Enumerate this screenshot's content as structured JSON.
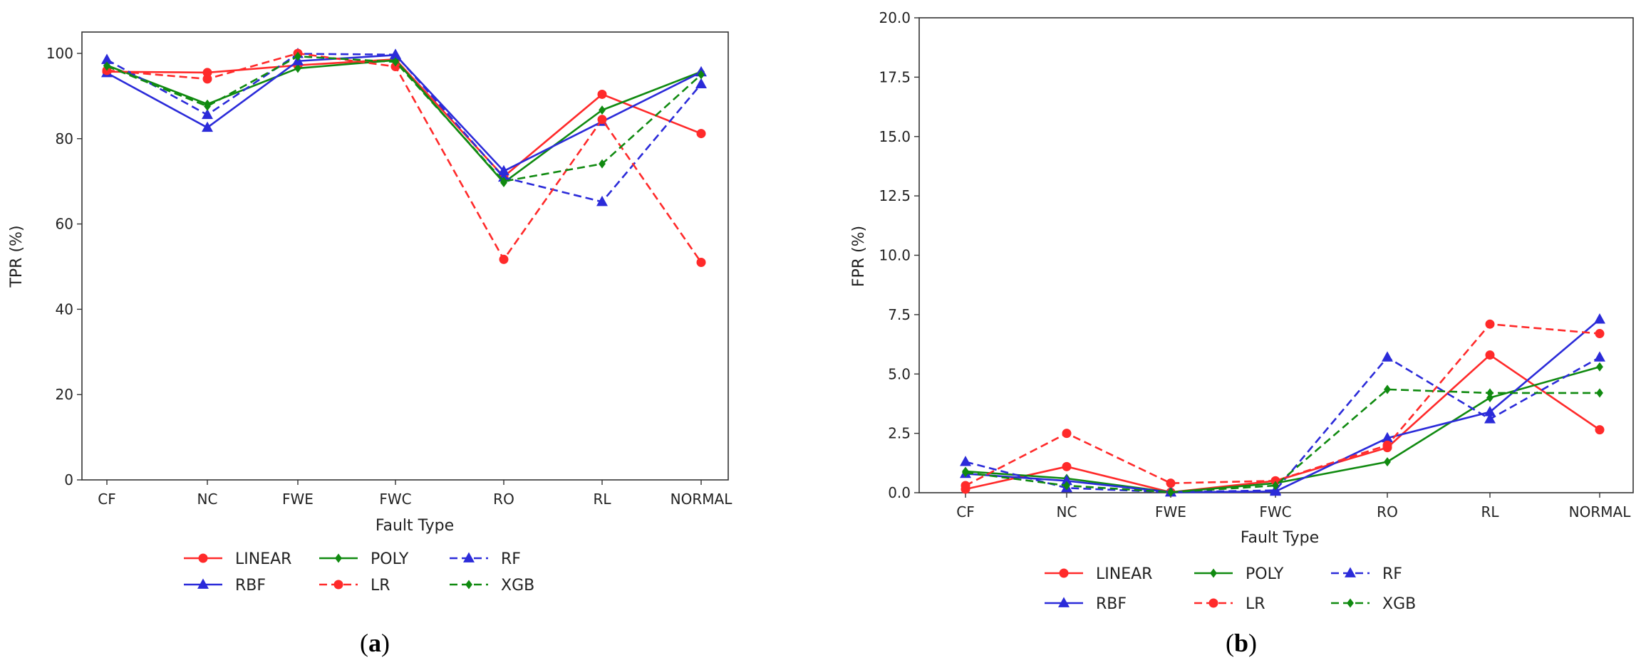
{
  "chart_data": [
    {
      "type": "line",
      "panel": "a",
      "caption": "(a)",
      "xlabel": "Fault Type",
      "ylabel": "TPR (%)",
      "categories": [
        "CF",
        "NC",
        "FWE",
        "FWC",
        "RO",
        "RL",
        "NORMAL"
      ],
      "ylim": [
        0,
        105
      ],
      "yticks": [
        0,
        20,
        40,
        60,
        80,
        100
      ],
      "ytick_labels": [
        "0",
        "20",
        "40",
        "60",
        "80",
        "100"
      ],
      "grid": false,
      "legend_position": "bottom-center",
      "series": [
        {
          "name": "LINEAR",
          "color": "#ff2a2a",
          "style": "solid",
          "marker": "circle",
          "values": [
            95.7,
            95.5,
            97.2,
            98.6,
            71.1,
            90.4,
            81.2
          ]
        },
        {
          "name": "POLY",
          "color": "#108a10",
          "style": "solid",
          "marker": "diamond",
          "values": [
            97.2,
            88.1,
            96.5,
            98.4,
            69.7,
            86.7,
            95.7
          ]
        },
        {
          "name": "RF",
          "color": "#2b2bd9",
          "style": "dashed",
          "marker": "triangle",
          "values": [
            98.5,
            85.6,
            99.9,
            99.7,
            70.9,
            65.2,
            92.8
          ]
        },
        {
          "name": "RBF",
          "color": "#2b2bd9",
          "style": "solid",
          "marker": "triangle",
          "values": [
            95.4,
            82.6,
            98.2,
            99.6,
            72.4,
            84.0,
            95.6
          ]
        },
        {
          "name": "LR",
          "color": "#ff2a2a",
          "style": "dashed",
          "marker": "circle",
          "values": [
            96.0,
            94.0,
            100.0,
            96.9,
            51.7,
            84.5,
            51.0
          ]
        },
        {
          "name": "XGB",
          "color": "#108a10",
          "style": "dashed",
          "marker": "diamond",
          "values": [
            97.0,
            87.6,
            99.3,
            98.0,
            70.0,
            74.1,
            95.0
          ]
        }
      ]
    },
    {
      "type": "line",
      "panel": "b",
      "caption": "(b)",
      "xlabel": "Fault Type",
      "ylabel": "FPR (%)",
      "categories": [
        "CF",
        "NC",
        "FWE",
        "FWC",
        "RO",
        "RL",
        "NORMAL"
      ],
      "ylim": [
        0,
        20
      ],
      "yticks": [
        0,
        2.5,
        5,
        7.5,
        10,
        12.5,
        15,
        17.5,
        20
      ],
      "ytick_labels": [
        "0.0",
        "2.5",
        "5.0",
        "7.5",
        "10.0",
        "12.5",
        "15.0",
        "17.5",
        "20.0"
      ],
      "grid": false,
      "legend_position": "bottom-center",
      "series": [
        {
          "name": "LINEAR",
          "color": "#ff2a2a",
          "style": "solid",
          "marker": "circle",
          "values": [
            0.15,
            1.1,
            0.02,
            0.5,
            1.9,
            5.8,
            2.65
          ]
        },
        {
          "name": "POLY",
          "color": "#108a10",
          "style": "solid",
          "marker": "diamond",
          "values": [
            0.9,
            0.6,
            0.02,
            0.4,
            1.3,
            4.0,
            5.3
          ]
        },
        {
          "name": "RF",
          "color": "#2b2bd9",
          "style": "dashed",
          "marker": "triangle",
          "values": [
            1.3,
            0.2,
            0.02,
            0.1,
            5.7,
            3.1,
            5.7
          ]
        },
        {
          "name": "RBF",
          "color": "#2b2bd9",
          "style": "solid",
          "marker": "triangle",
          "values": [
            0.8,
            0.5,
            0.02,
            0.05,
            2.3,
            3.4,
            7.3
          ]
        },
        {
          "name": "LR",
          "color": "#ff2a2a",
          "style": "dashed",
          "marker": "circle",
          "values": [
            0.3,
            2.5,
            0.4,
            0.5,
            2.0,
            7.1,
            6.7
          ]
        },
        {
          "name": "XGB",
          "color": "#108a10",
          "style": "dashed",
          "marker": "diamond",
          "values": [
            0.85,
            0.3,
            0.02,
            0.3,
            4.35,
            4.2,
            4.2
          ]
        }
      ]
    }
  ]
}
